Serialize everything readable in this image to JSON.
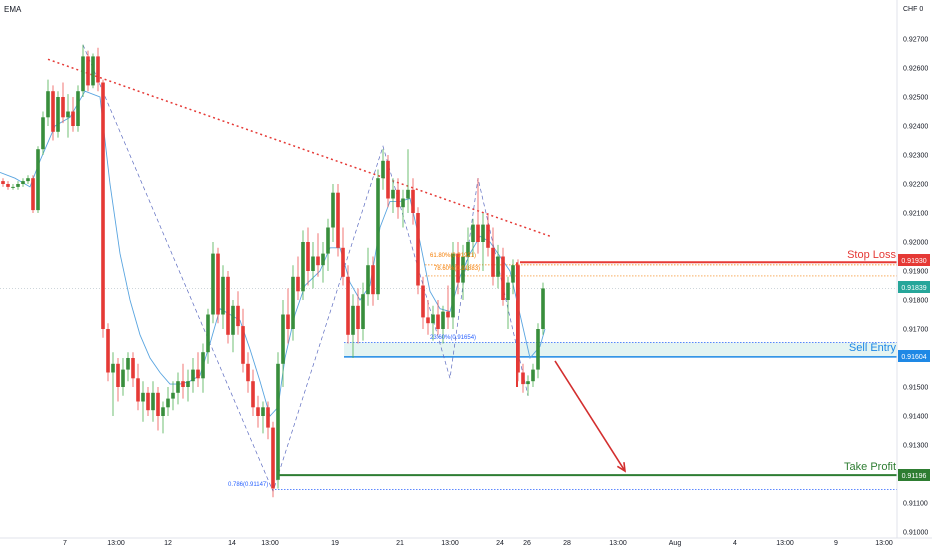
{
  "header": {
    "indicator_label": "EMA",
    "currency": "CHF",
    "currency_suffix": "0"
  },
  "chart_data": {
    "type": "candlestick",
    "y_axis": {
      "range": [
        0.91,
        0.928
      ],
      "ticks": [
        "0.92700",
        "0.92600",
        "0.92500",
        "0.92400",
        "0.92300",
        "0.92200",
        "0.92100",
        "0.92000",
        "0.91900",
        "0.91800",
        "0.91700",
        "0.91600",
        "0.91500",
        "0.91400",
        "0.91300",
        "0.91200",
        "0.91100",
        "0.91000"
      ],
      "tick_values": [
        0.927,
        0.926,
        0.925,
        0.924,
        0.923,
        0.922,
        0.921,
        0.92,
        0.919,
        0.918,
        0.917,
        0.916,
        0.915,
        0.914,
        0.913,
        0.912,
        0.911,
        0.91
      ]
    },
    "x_axis": {
      "range": [
        0,
        920
      ],
      "labels": [
        {
          "text": "7",
          "x": 65
        },
        {
          "text": "13:00",
          "x": 116
        },
        {
          "text": "12",
          "x": 168
        },
        {
          "text": "14",
          "x": 232
        },
        {
          "text": "13:00",
          "x": 270
        },
        {
          "text": "19",
          "x": 335
        },
        {
          "text": "21",
          "x": 400
        },
        {
          "text": "13:00",
          "x": 450
        },
        {
          "text": "24",
          "x": 500
        },
        {
          "text": "26",
          "x": 527
        },
        {
          "text": "28",
          "x": 567
        },
        {
          "text": "13:00",
          "x": 618
        },
        {
          "text": "Aug",
          "x": 675
        },
        {
          "text": "4",
          "x": 735
        },
        {
          "text": "13:00",
          "x": 785
        },
        {
          "text": "9",
          "x": 836
        },
        {
          "text": "13:00",
          "x": 884
        }
      ]
    },
    "candles": [
      [
        3,
        0.9221,
        0.9222,
        0.9219,
        0.922
      ],
      [
        8,
        0.922,
        0.9221,
        0.9218,
        0.9219
      ],
      [
        13,
        0.9219,
        0.922,
        0.9218,
        0.9219
      ],
      [
        18,
        0.9219,
        0.9221,
        0.9218,
        0.922
      ],
      [
        23,
        0.922,
        0.9222,
        0.9219,
        0.9221
      ],
      [
        28,
        0.9221,
        0.9223,
        0.922,
        0.9222
      ],
      [
        33,
        0.9222,
        0.9223,
        0.921,
        0.9211
      ],
      [
        38,
        0.9211,
        0.9233,
        0.921,
        0.9232
      ],
      [
        43,
        0.9232,
        0.9245,
        0.923,
        0.9243
      ],
      [
        48,
        0.9243,
        0.9256,
        0.924,
        0.9252
      ],
      [
        53,
        0.9252,
        0.9254,
        0.9235,
        0.9238
      ],
      [
        58,
        0.9238,
        0.9252,
        0.9236,
        0.925
      ],
      [
        63,
        0.925,
        0.9255,
        0.9241,
        0.9243
      ],
      [
        68,
        0.9243,
        0.9251,
        0.9236,
        0.9245
      ],
      [
        73,
        0.9245,
        0.925,
        0.9238,
        0.924
      ],
      [
        78,
        0.924,
        0.9254,
        0.9238,
        0.9252
      ],
      [
        83,
        0.9252,
        0.9268,
        0.925,
        0.9264
      ],
      [
        88,
        0.9264,
        0.9266,
        0.9252,
        0.9254
      ],
      [
        93,
        0.9254,
        0.9265,
        0.9253,
        0.9264
      ],
      [
        98,
        0.9264,
        0.9267,
        0.9252,
        0.9255
      ],
      [
        103,
        0.9255,
        0.9256,
        0.9167,
        0.917
      ],
      [
        108,
        0.917,
        0.9172,
        0.9152,
        0.9155
      ],
      [
        113,
        0.9155,
        0.9162,
        0.914,
        0.9158
      ],
      [
        118,
        0.9158,
        0.916,
        0.9145,
        0.915
      ],
      [
        123,
        0.915,
        0.916,
        0.9147,
        0.9156
      ],
      [
        128,
        0.9156,
        0.9162,
        0.9152,
        0.916
      ],
      [
        133,
        0.916,
        0.9162,
        0.915,
        0.9153
      ],
      [
        138,
        0.9153,
        0.9158,
        0.9142,
        0.9145
      ],
      [
        143,
        0.9145,
        0.9152,
        0.9138,
        0.9148
      ],
      [
        148,
        0.9148,
        0.915,
        0.914,
        0.9142
      ],
      [
        153,
        0.9142,
        0.9152,
        0.9138,
        0.9148
      ],
      [
        158,
        0.9148,
        0.915,
        0.9135,
        0.914
      ],
      [
        163,
        0.914,
        0.9145,
        0.9134,
        0.9143
      ],
      [
        168,
        0.9143,
        0.915,
        0.914,
        0.9146
      ],
      [
        173,
        0.9146,
        0.9152,
        0.9142,
        0.9148
      ],
      [
        178,
        0.9148,
        0.9155,
        0.9144,
        0.9152
      ],
      [
        183,
        0.9152,
        0.9158,
        0.9146,
        0.915
      ],
      [
        188,
        0.915,
        0.9156,
        0.9145,
        0.9152
      ],
      [
        193,
        0.9152,
        0.916,
        0.9148,
        0.9156
      ],
      [
        198,
        0.9156,
        0.9162,
        0.915,
        0.9153
      ],
      [
        203,
        0.9153,
        0.9165,
        0.9148,
        0.9162
      ],
      [
        208,
        0.9162,
        0.9177,
        0.9158,
        0.9175
      ],
      [
        213,
        0.9175,
        0.92,
        0.9172,
        0.9196
      ],
      [
        218,
        0.9196,
        0.9198,
        0.9172,
        0.9175
      ],
      [
        223,
        0.9175,
        0.9192,
        0.917,
        0.9188
      ],
      [
        228,
        0.9188,
        0.919,
        0.9165,
        0.9168
      ],
      [
        233,
        0.9168,
        0.918,
        0.9162,
        0.9178
      ],
      [
        238,
        0.9178,
        0.9183,
        0.9168,
        0.9171
      ],
      [
        243,
        0.9171,
        0.9177,
        0.9155,
        0.9158
      ],
      [
        248,
        0.9158,
        0.9162,
        0.9148,
        0.9152
      ],
      [
        253,
        0.9152,
        0.9156,
        0.914,
        0.9143
      ],
      [
        258,
        0.9143,
        0.9147,
        0.9136,
        0.914
      ],
      [
        263,
        0.914,
        0.9145,
        0.9134,
        0.9143
      ],
      [
        268,
        0.9143,
        0.9145,
        0.9132,
        0.9136
      ],
      [
        273,
        0.9136,
        0.9138,
        0.9112,
        0.9115
      ],
      [
        278,
        0.9118,
        0.9162,
        0.9115,
        0.9158
      ],
      [
        283,
        0.9158,
        0.918,
        0.915,
        0.9175
      ],
      [
        288,
        0.9175,
        0.9184,
        0.9165,
        0.917
      ],
      [
        293,
        0.917,
        0.9192,
        0.9166,
        0.9188
      ],
      [
        298,
        0.9188,
        0.9195,
        0.918,
        0.9183
      ],
      [
        303,
        0.9183,
        0.9204,
        0.918,
        0.92
      ],
      [
        308,
        0.92,
        0.9205,
        0.9185,
        0.919
      ],
      [
        313,
        0.919,
        0.92,
        0.9184,
        0.9195
      ],
      [
        318,
        0.9195,
        0.9203,
        0.9188,
        0.9192
      ],
      [
        323,
        0.9192,
        0.92,
        0.9186,
        0.9196
      ],
      [
        328,
        0.9196,
        0.9208,
        0.919,
        0.9205
      ],
      [
        333,
        0.9205,
        0.922,
        0.92,
        0.9217
      ],
      [
        338,
        0.9217,
        0.922,
        0.9195,
        0.9198
      ],
      [
        343,
        0.9198,
        0.9205,
        0.9185,
        0.9188
      ],
      [
        348,
        0.9188,
        0.9192,
        0.9165,
        0.9168
      ],
      [
        353,
        0.9168,
        0.9182,
        0.916,
        0.9178
      ],
      [
        358,
        0.9178,
        0.9184,
        0.9165,
        0.917
      ],
      [
        363,
        0.917,
        0.9186,
        0.9166,
        0.9182
      ],
      [
        368,
        0.9182,
        0.9198,
        0.9178,
        0.9192
      ],
      [
        373,
        0.9192,
        0.9195,
        0.9178,
        0.9182
      ],
      [
        378,
        0.9182,
        0.9225,
        0.918,
        0.9222
      ],
      [
        383,
        0.9222,
        0.9232,
        0.9218,
        0.9228
      ],
      [
        388,
        0.9228,
        0.923,
        0.9212,
        0.9215
      ],
      [
        393,
        0.9215,
        0.9222,
        0.921,
        0.9218
      ],
      [
        398,
        0.9218,
        0.9222,
        0.9208,
        0.9212
      ],
      [
        403,
        0.9212,
        0.9218,
        0.9205,
        0.9215
      ],
      [
        408,
        0.9215,
        0.9232,
        0.921,
        0.9218
      ],
      [
        413,
        0.9218,
        0.9222,
        0.9206,
        0.921
      ],
      [
        418,
        0.921,
        0.9212,
        0.9182,
        0.9185
      ],
      [
        423,
        0.9185,
        0.9188,
        0.917,
        0.9174
      ],
      [
        428,
        0.9174,
        0.918,
        0.9168,
        0.9172
      ],
      [
        433,
        0.9172,
        0.9178,
        0.9166,
        0.9175
      ],
      [
        438,
        0.9175,
        0.918,
        0.9168,
        0.917
      ],
      [
        443,
        0.917,
        0.9178,
        0.9165,
        0.9176
      ],
      [
        448,
        0.9176,
        0.9185,
        0.917,
        0.9174
      ],
      [
        453,
        0.9174,
        0.92,
        0.917,
        0.9196
      ],
      [
        458,
        0.9196,
        0.92,
        0.9182,
        0.9186
      ],
      [
        463,
        0.9186,
        0.9199,
        0.918,
        0.9195
      ],
      [
        468,
        0.9195,
        0.9205,
        0.919,
        0.92
      ],
      [
        473,
        0.92,
        0.9208,
        0.9195,
        0.9206
      ],
      [
        478,
        0.9206,
        0.9222,
        0.9196,
        0.92
      ],
      [
        483,
        0.92,
        0.921,
        0.919,
        0.9206
      ],
      [
        488,
        0.9206,
        0.921,
        0.9195,
        0.9198
      ],
      [
        493,
        0.9198,
        0.9205,
        0.9185,
        0.9188
      ],
      [
        498,
        0.9188,
        0.9199,
        0.9184,
        0.9195
      ],
      [
        503,
        0.9195,
        0.9198,
        0.9178,
        0.918
      ],
      [
        508,
        0.918,
        0.9188,
        0.917,
        0.9186
      ],
      [
        513,
        0.9186,
        0.9194,
        0.9182,
        0.9192
      ],
      [
        518,
        0.9192,
        0.9194,
        0.9152,
        0.9155
      ],
      [
        523,
        0.9155,
        0.9158,
        0.9148,
        0.9151
      ],
      [
        528,
        0.9151,
        0.9154,
        0.9147,
        0.9152
      ],
      [
        533,
        0.9152,
        0.9158,
        0.915,
        0.9156
      ],
      [
        538,
        0.9156,
        0.9172,
        0.9153,
        0.917
      ],
      [
        543,
        0.917,
        0.9186,
        0.9168,
        0.9184
      ]
    ],
    "ema": [
      [
        0,
        0.9224
      ],
      [
        15,
        0.9222
      ],
      [
        30,
        0.9219
      ],
      [
        40,
        0.9228
      ],
      [
        55,
        0.924
      ],
      [
        70,
        0.9243
      ],
      [
        85,
        0.9252
      ],
      [
        100,
        0.925
      ],
      [
        110,
        0.922
      ],
      [
        120,
        0.9196
      ],
      [
        130,
        0.918
      ],
      [
        140,
        0.9168
      ],
      [
        150,
        0.916
      ],
      [
        160,
        0.9155
      ],
      [
        170,
        0.9151
      ],
      [
        180,
        0.9151
      ],
      [
        190,
        0.9152
      ],
      [
        200,
        0.9154
      ],
      [
        210,
        0.9165
      ],
      [
        220,
        0.9177
      ],
      [
        230,
        0.9175
      ],
      [
        240,
        0.9173
      ],
      [
        250,
        0.9163
      ],
      [
        260,
        0.9152
      ],
      [
        270,
        0.914
      ],
      [
        278,
        0.9143
      ],
      [
        285,
        0.916
      ],
      [
        295,
        0.9175
      ],
      [
        305,
        0.9185
      ],
      [
        320,
        0.919
      ],
      [
        330,
        0.9198
      ],
      [
        340,
        0.9198
      ],
      [
        350,
        0.9186
      ],
      [
        360,
        0.918
      ],
      [
        370,
        0.9185
      ],
      [
        380,
        0.9205
      ],
      [
        390,
        0.9214
      ],
      [
        400,
        0.9214
      ],
      [
        410,
        0.9215
      ],
      [
        420,
        0.92
      ],
      [
        430,
        0.9183
      ],
      [
        440,
        0.9177
      ],
      [
        450,
        0.9176
      ],
      [
        460,
        0.9188
      ],
      [
        470,
        0.9196
      ],
      [
        480,
        0.9202
      ],
      [
        490,
        0.92
      ],
      [
        500,
        0.9195
      ],
      [
        510,
        0.919
      ],
      [
        520,
        0.9175
      ],
      [
        530,
        0.916
      ],
      [
        540,
        0.9164
      ],
      [
        545,
        0.917
      ]
    ],
    "trendline": [
      [
        48,
        0.9263
      ],
      [
        550,
        0.9202
      ]
    ],
    "zigzag": [
      [
        83,
        0.9268
      ],
      [
        273,
        0.9114
      ],
      [
        383,
        0.9233
      ],
      [
        450,
        0.9153
      ],
      [
        478,
        0.9222
      ],
      [
        528,
        0.9147
      ]
    ],
    "levels": [
      {
        "name": "Stop Loss",
        "value": 0.9193,
        "color": "#e53935",
        "label_tag": "0.91930"
      },
      {
        "name": "Sell Entry",
        "value": 0.91604,
        "color": "#2196f3",
        "label_tag": "0.91604"
      },
      {
        "name": "Take Profit",
        "value": 0.91196,
        "color": "#2e7d32",
        "label_tag": "0.91196"
      }
    ],
    "current_price": {
      "value": 0.91839,
      "label_tag": "0.91839",
      "color": "#26a69a"
    },
    "fib_labels": [
      {
        "text": "61.80%(0.91921)",
        "value": 0.91921,
        "color": "#f57c00"
      },
      {
        "text": "78.60%(0.91883)",
        "value": 0.91883,
        "color": "#f57c00"
      },
      {
        "text": "23.60%(0.91654)",
        "value": 0.91654,
        "color": "#2962ff"
      },
      {
        "text": "0.786(0.91147)",
        "value": 0.91147,
        "color": "#2962ff"
      }
    ],
    "arrow": {
      "from": [
        555,
        0.9159
      ],
      "to": [
        625,
        0.9121
      ],
      "color": "#d32f2f"
    },
    "colors": {
      "up": "#26a69a",
      "down": "#ef5350",
      "bull_body": "#388e3c",
      "bear_body": "#e53935",
      "ema": "#5aa5e0",
      "trend": "#e53935",
      "zigzag": "#5c6bc0"
    }
  }
}
